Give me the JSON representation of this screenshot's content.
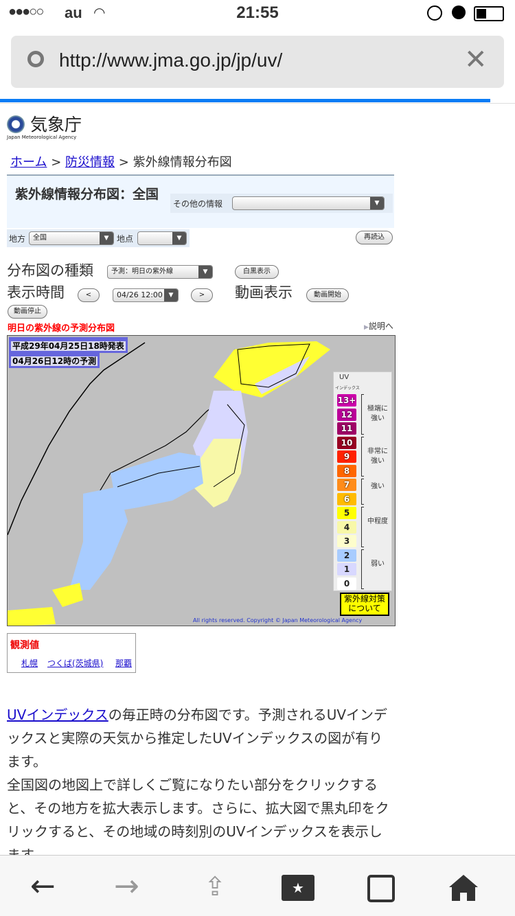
{
  "status_bar": {
    "carrier": "au",
    "signal": "●●●○○",
    "time": "21:55"
  },
  "browser": {
    "url": "http://www.jma.go.jp/jp/uv/",
    "load_progress": 0.95
  },
  "logo": {
    "name": "気象庁",
    "english": "Japan Meteorological Agency"
  },
  "breadcrumb": {
    "home": "ホーム",
    "disaster": "防災情報",
    "sep": ">",
    "current": "紫外線情報分布図"
  },
  "header": {
    "title": "紫外線情報分布図：全国",
    "other_info_label": "その他の情報",
    "other_info_value": ""
  },
  "filters": {
    "region_label": "地方",
    "region_value": "全国",
    "point_label": "地点",
    "point_value": "",
    "reload": "再読込"
  },
  "controls": {
    "map_type_label": "分布図の種類",
    "map_type_value": "予測：明日の紫外線",
    "bw_button": "白黒表示",
    "time_label": "表示時間",
    "prev": "<",
    "time_value": "04/26 12:00",
    "next": ">",
    "animation_label": "動画表示",
    "anim_start": "動画開始",
    "anim_stop": "動画停止"
  },
  "map": {
    "title": "明日の紫外線の予測分布図",
    "explain_link": "説明へ",
    "issued": "平成29年04月25日18時発表",
    "forecast": "04月26日12時の予測",
    "copyright": "All rights reserved. Copyright © Japan Meteorological Agency",
    "legend": {
      "title": "UV",
      "subtitle": "インデックス",
      "levels": [
        {
          "label": "13+",
          "color": "#cc00aa"
        },
        {
          "label": "12",
          "color": "#bb0099"
        },
        {
          "label": "11",
          "color": "#a00066"
        },
        {
          "label": "10",
          "color": "#990022"
        },
        {
          "label": "9",
          "color": "#ff2200"
        },
        {
          "label": "8",
          "color": "#ff6600"
        },
        {
          "label": "7",
          "color": "#ff8c1a"
        },
        {
          "label": "6",
          "color": "#ffbb00"
        },
        {
          "label": "5",
          "color": "#ffff00"
        },
        {
          "label": "4",
          "color": "#f8f8a8"
        },
        {
          "label": "3",
          "color": "#fdfdcc"
        },
        {
          "label": "2",
          "color": "#a8ccff"
        },
        {
          "label": "1",
          "color": "#d8d8ff"
        },
        {
          "label": "0",
          "color": "#ffffff"
        }
      ],
      "groups": [
        "極端に\n強い",
        "非常に\n強い",
        "強い",
        "中程度",
        "弱い"
      ],
      "measures_button": "紫外線対策\nについて"
    }
  },
  "observations": {
    "title": "観測値",
    "links": [
      "札幌",
      "つくば(茨城県)",
      "那覇"
    ]
  },
  "description": {
    "link": "UVインデックス",
    "text1": "の毎正時の分布図です。予測されるUVインデックスと実際の天気から推定したUVインデックスの図が有ります。",
    "text2": "全国図の地図上で詳しくご覧になりたい部分をクリックすると、その地方を拡大表示します。さらに、拡大図で黒丸印をクリックすると、その地域の時刻別のUVインデックスを表示します。"
  }
}
